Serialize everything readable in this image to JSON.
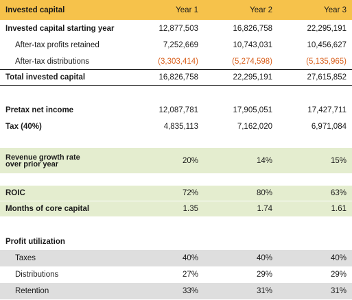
{
  "header": {
    "title": "Invested capital",
    "years": [
      "Year 1",
      "Year 2",
      "Year 3"
    ]
  },
  "rows": {
    "starting": {
      "label": "Invested capital starting year",
      "values": [
        "12,877,503",
        "16,826,758",
        "22,295,191"
      ]
    },
    "retained": {
      "label": "After-tax profits retained",
      "values": [
        "7,252,669",
        "10,743,031",
        "10,456,627"
      ]
    },
    "distributions": {
      "label": "After-tax distributions",
      "values": [
        "(3,303,414)",
        "(5,274,598)",
        "(5,135,965)"
      ]
    },
    "total": {
      "label": "Total invested capital",
      "values": [
        "16,826,758",
        "22,295,191",
        "27,615,852"
      ]
    },
    "pretax": {
      "label": "Pretax net income",
      "values": [
        "12,087,781",
        "17,905,051",
        "17,427,711"
      ]
    },
    "tax": {
      "label": "Tax (40%)",
      "values": [
        "4,835,113",
        "7,162,020",
        "6,971,084"
      ]
    },
    "growth": {
      "label_line1": "Revenue growth rate",
      "label_line2": "over prior year",
      "values": [
        "20%",
        "14%",
        "15%"
      ]
    },
    "roic": {
      "label": "ROIC",
      "values": [
        "72%",
        "80%",
        "63%"
      ]
    },
    "months": {
      "label": "Months of core capital",
      "values": [
        "1.35",
        "1.74",
        "1.61"
      ]
    },
    "profit_util": {
      "label": "Profit utilization"
    },
    "taxes": {
      "label": "Taxes",
      "values": [
        "40%",
        "40%",
        "40%"
      ]
    },
    "distrib": {
      "label": "Distributions",
      "values": [
        "27%",
        "29%",
        "29%"
      ]
    },
    "retention": {
      "label": "Retention",
      "values": [
        "33%",
        "31%",
        "31%"
      ]
    }
  },
  "colors": {
    "header": "#f6c24b",
    "highlight_green": "#e4edcf",
    "highlight_grey": "#dedede",
    "negative": "#d9601d"
  }
}
